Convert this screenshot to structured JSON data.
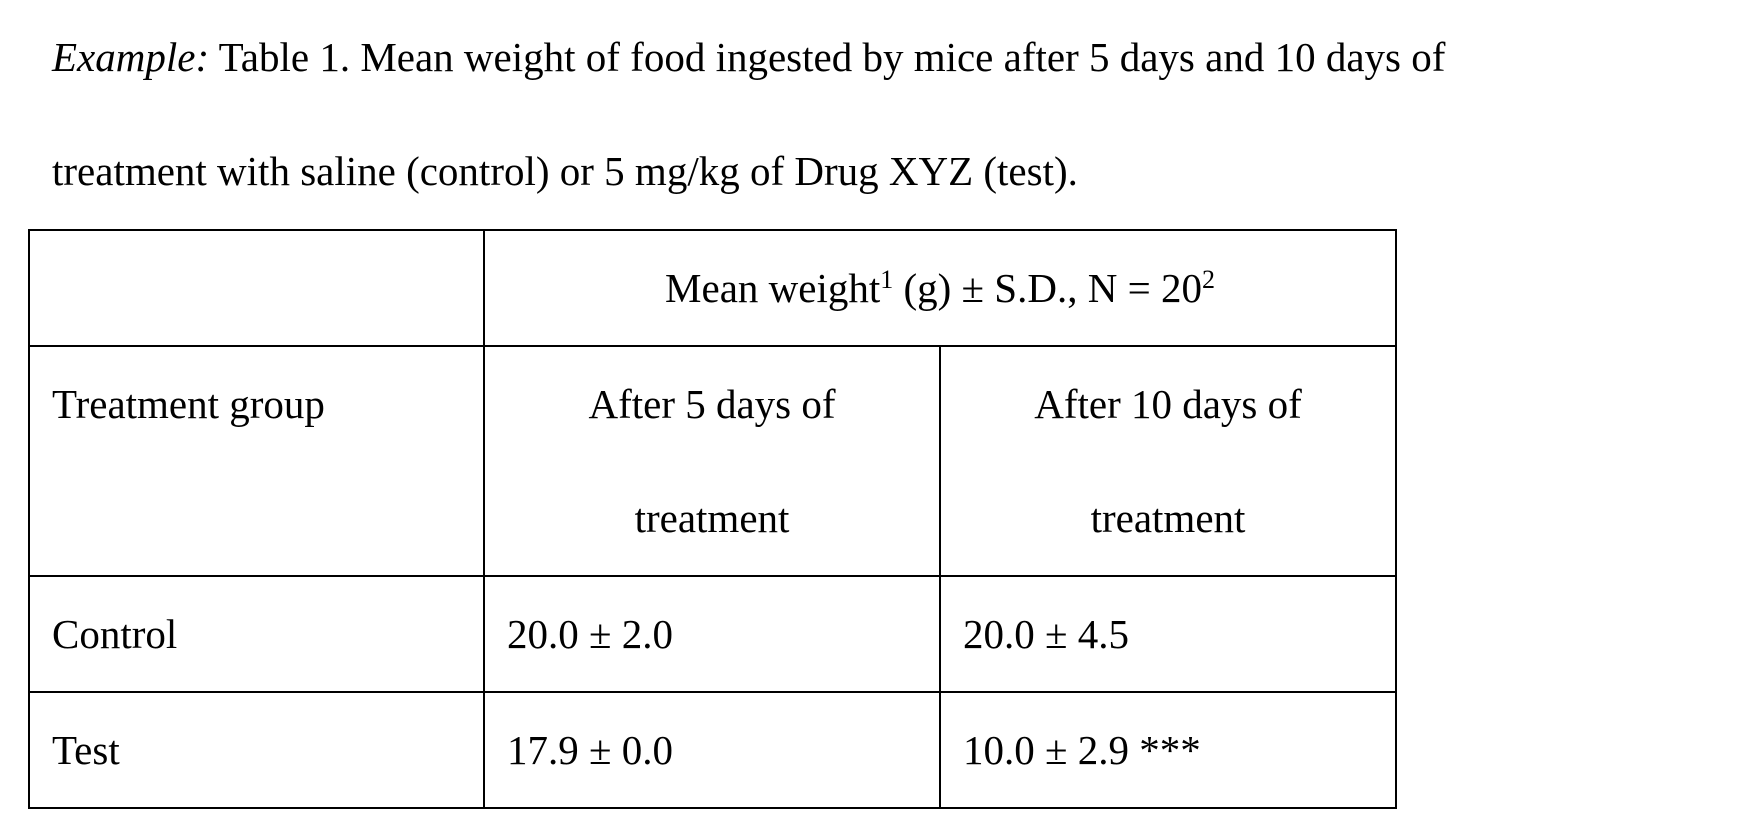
{
  "caption": {
    "label": "Example:",
    "line1": " Table 1. Mean weight of food ingested by mice after 5 days and 10 days of",
    "line2": "treatment with saline (control) or 5 mg/kg of Drug XYZ (test)."
  },
  "table": {
    "header_span": {
      "text_before": "Mean weight",
      "sup1": "1",
      "text_middle": " (g) ± S.D., N = 20",
      "sup2": "2"
    },
    "row_label_header": "Treatment group",
    "col1": {
      "line1": "After 5 days of",
      "line2": "treatment"
    },
    "col2": {
      "line1": "After 10 days of",
      "line2": "treatment"
    },
    "rows": [
      {
        "group": "Control",
        "day5": "20.0 ± 2.0",
        "day10": "20.0 ± 4.5"
      },
      {
        "group": "Test",
        "day5": "17.9 ± 0.0",
        "day10": "10.0 ± 2.9 ***"
      }
    ]
  }
}
